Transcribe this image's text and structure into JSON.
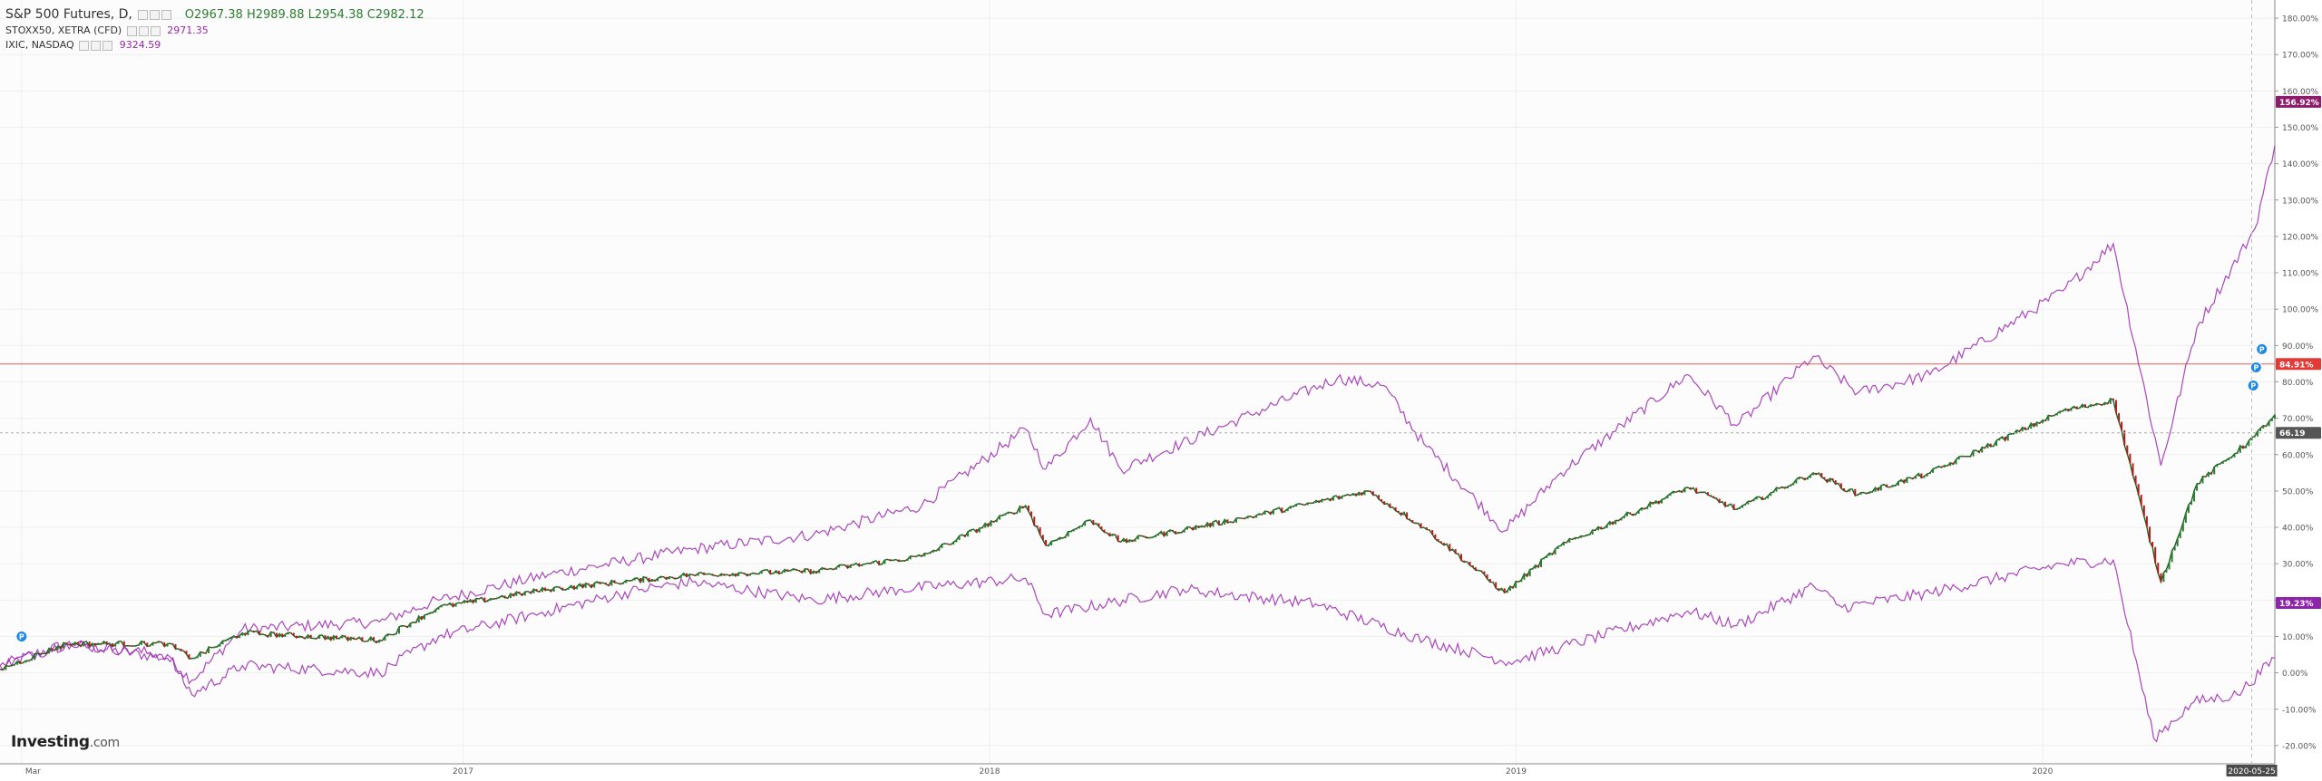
{
  "legend": {
    "main": {
      "title": "S&P 500 Futures, D,",
      "open": "O2967.38",
      "high": "H2989.88",
      "low": "L2954.38",
      "close": "C2982.12"
    },
    "series1": {
      "label": "STOXX50, XETRA (CFD)",
      "value": "2971.35"
    },
    "series2": {
      "label": "IXIC, NASDAQ",
      "value": "9324.59"
    }
  },
  "brand": {
    "name": "Investing",
    "suffix": ".com"
  },
  "badges": {
    "nasdaq": "156.92%",
    "hline": "84.91%",
    "main": "66.19",
    "stoxx": "19.23%"
  },
  "crosshair_date": "2020-05-25",
  "colors": {
    "nasdaq": "#9c27b0",
    "stoxx": "#9c27b0",
    "candle_up": "#2e7d32",
    "candle_down": "#b71c1c",
    "hline": "#e53935",
    "main_badge": "#555555"
  },
  "chart_data": {
    "type": "line",
    "y_unit": "percent change",
    "ylim": [
      -25,
      185
    ],
    "y_ticks": [
      "180.00%",
      "170.00%",
      "160.00%",
      "150.00%",
      "140.00%",
      "130.00%",
      "120.00%",
      "110.00%",
      "100.00%",
      "90.00%",
      "80.00%",
      "70.00%",
      "60.00%",
      "50.00%",
      "40.00%",
      "30.00%",
      "20.00%",
      "10.00%",
      "0.00%",
      "-10.00%",
      "-20.00%"
    ],
    "y_tick_values": [
      180,
      170,
      160,
      150,
      140,
      130,
      120,
      110,
      100,
      90,
      80,
      70,
      60,
      50,
      40,
      30,
      20,
      10,
      0,
      -10,
      -20
    ],
    "x_tick_labels": [
      "Mar",
      "2017",
      "2018",
      "2019",
      "2020"
    ],
    "x_tick_dates": [
      "2016-03-01",
      "2017-01-01",
      "2018-01-01",
      "2019-01-01",
      "2020-01-01"
    ],
    "x_range": [
      "2016-02-15",
      "2020-06-10"
    ],
    "grid": true,
    "horizontal_line": 84.91,
    "series": [
      {
        "name": "IXIC, NASDAQ",
        "points": [
          [
            "2016-02-15",
            2
          ],
          [
            "2016-04-01",
            8
          ],
          [
            "2016-06-10",
            4
          ],
          [
            "2016-06-27",
            -2
          ],
          [
            "2016-08-01",
            12
          ],
          [
            "2016-11-04",
            14
          ],
          [
            "2016-12-15",
            20
          ],
          [
            "2017-03-01",
            27
          ],
          [
            "2017-06-09",
            34
          ],
          [
            "2017-09-01",
            38
          ],
          [
            "2017-11-15",
            46
          ],
          [
            "2018-01-26",
            67
          ],
          [
            "2018-02-09",
            56
          ],
          [
            "2018-03-12",
            70
          ],
          [
            "2018-04-02",
            56
          ],
          [
            "2018-07-01",
            71
          ],
          [
            "2018-08-30",
            81
          ],
          [
            "2018-10-01",
            79
          ],
          [
            "2018-10-29",
            63
          ],
          [
            "2018-12-24",
            39
          ],
          [
            "2019-02-01",
            55
          ],
          [
            "2019-04-30",
            82
          ],
          [
            "2019-06-03",
            68
          ],
          [
            "2019-07-26",
            87
          ],
          [
            "2019-08-26",
            77
          ],
          [
            "2019-10-15",
            82
          ],
          [
            "2020-01-15",
            105
          ],
          [
            "2020-02-19",
            118
          ],
          [
            "2020-03-23",
            57
          ],
          [
            "2020-04-17",
            95
          ],
          [
            "2020-05-27",
            122
          ],
          [
            "2020-06-10",
            145
          ]
        ]
      },
      {
        "name": "STOXX50, XETRA (CFD)",
        "points": [
          [
            "2016-02-15",
            2
          ],
          [
            "2016-04-01",
            8
          ],
          [
            "2016-06-10",
            5
          ],
          [
            "2016-06-27",
            -6
          ],
          [
            "2016-08-01",
            2
          ],
          [
            "2016-11-04",
            0
          ],
          [
            "2016-12-15",
            10
          ],
          [
            "2017-03-01",
            17
          ],
          [
            "2017-05-05",
            23
          ],
          [
            "2017-06-09",
            25
          ],
          [
            "2017-09-01",
            20
          ],
          [
            "2017-11-01",
            23
          ],
          [
            "2018-01-26",
            26
          ],
          [
            "2018-02-09",
            16
          ],
          [
            "2018-05-15",
            23
          ],
          [
            "2018-08-15",
            19
          ],
          [
            "2018-10-29",
            9
          ],
          [
            "2018-12-27",
            3
          ],
          [
            "2019-02-01",
            7
          ],
          [
            "2019-04-30",
            17
          ],
          [
            "2019-06-03",
            13
          ],
          [
            "2019-07-26",
            24
          ],
          [
            "2019-08-15",
            18
          ],
          [
            "2019-10-15",
            22
          ],
          [
            "2020-01-15",
            30
          ],
          [
            "2020-02-19",
            31
          ],
          [
            "2020-03-18",
            -18
          ],
          [
            "2020-04-15",
            -8
          ],
          [
            "2020-05-15",
            -6
          ],
          [
            "2020-06-10",
            4
          ]
        ]
      },
      {
        "name": "S&P 500 Futures",
        "style": "candlestick",
        "points": [
          [
            "2016-02-15",
            1
          ],
          [
            "2016-04-01",
            8
          ],
          [
            "2016-06-10",
            8
          ],
          [
            "2016-06-27",
            4
          ],
          [
            "2016-08-01",
            11
          ],
          [
            "2016-11-04",
            9
          ],
          [
            "2016-12-15",
            18
          ],
          [
            "2017-03-01",
            23
          ],
          [
            "2017-06-09",
            27
          ],
          [
            "2017-09-01",
            28
          ],
          [
            "2017-11-15",
            32
          ],
          [
            "2018-01-26",
            46
          ],
          [
            "2018-02-09",
            35
          ],
          [
            "2018-03-12",
            42
          ],
          [
            "2018-04-02",
            36
          ],
          [
            "2018-07-01",
            43
          ],
          [
            "2018-09-20",
            50
          ],
          [
            "2018-10-29",
            40
          ],
          [
            "2018-12-24",
            22
          ],
          [
            "2019-02-01",
            35
          ],
          [
            "2019-04-30",
            51
          ],
          [
            "2019-06-03",
            45
          ],
          [
            "2019-07-26",
            55
          ],
          [
            "2019-08-26",
            49
          ],
          [
            "2019-10-15",
            55
          ],
          [
            "2020-01-15",
            72
          ],
          [
            "2020-02-19",
            75
          ],
          [
            "2020-03-23",
            25
          ],
          [
            "2020-04-17",
            52
          ],
          [
            "2020-05-27",
            65
          ],
          [
            "2020-06-10",
            71
          ]
        ]
      }
    ]
  }
}
